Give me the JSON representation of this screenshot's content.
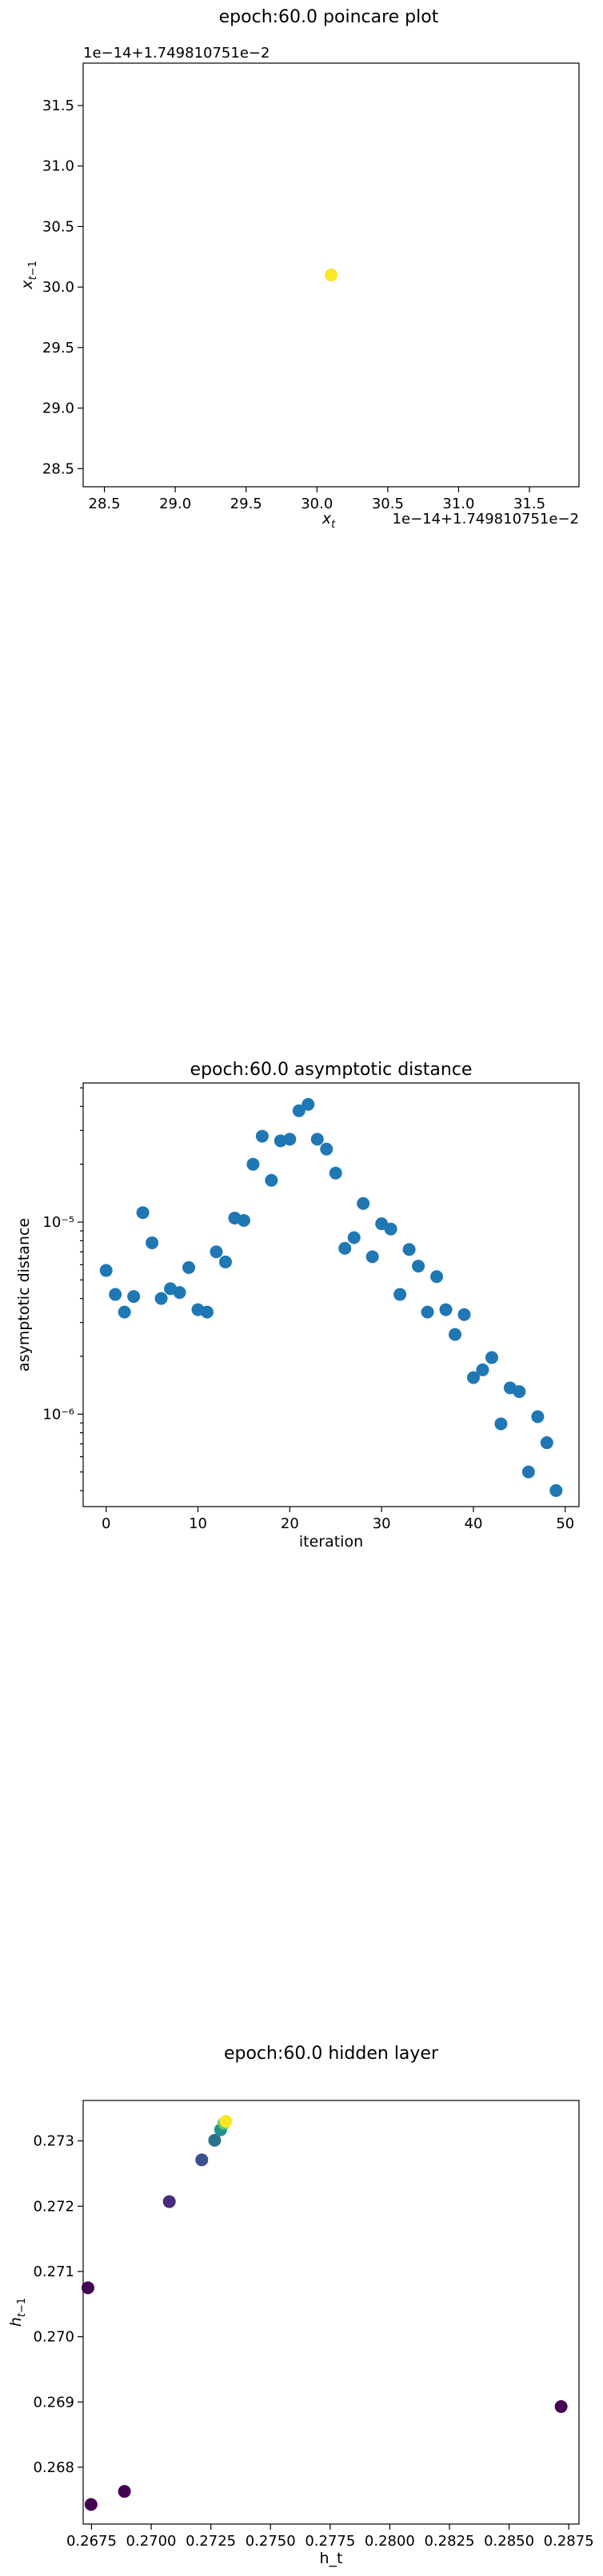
{
  "chart_data": [
    {
      "id": "poincare",
      "type": "scatter",
      "title": "epoch:60.0 poincare plot",
      "xlabel": "x_t",
      "ylabel": "x_{t-1}",
      "offset_text_x": "1e−14+1.749810751e−2",
      "offset_text_y": "1e−14+1.749810751e−2",
      "xlim": [
        28.35,
        31.85
      ],
      "ylim": [
        28.35,
        31.85
      ],
      "xticks": [
        28.5,
        29.0,
        29.5,
        30.0,
        30.5,
        31.0,
        31.5
      ],
      "yticks": [
        28.5,
        29.0,
        29.5,
        30.0,
        30.5,
        31.0,
        31.5
      ],
      "tick_labels_x": [
        "28.5",
        "29.0",
        "29.5",
        "30.0",
        "30.5",
        "31.0",
        "31.5"
      ],
      "tick_labels_y": [
        "28.5",
        "29.0",
        "29.5",
        "30.0",
        "30.5",
        "31.0",
        "31.5"
      ],
      "points": [
        {
          "x": 30.1,
          "y": 30.1,
          "color": "#fde725"
        }
      ]
    },
    {
      "id": "asymptotic",
      "type": "scatter",
      "title": "epoch:60.0 asymptotic distance",
      "xlabel": "iteration",
      "ylabel": "asymptotic distance",
      "yscale": "log",
      "xlim": [
        -2.5,
        51.5
      ],
      "ylim": [
        3.3e-07,
        5.3e-05
      ],
      "xticks": [
        0,
        10,
        20,
        30,
        40,
        50
      ],
      "tick_labels_x": [
        "0",
        "10",
        "20",
        "30",
        "40",
        "50"
      ],
      "major_yticks": [
        1e-06,
        1e-05
      ],
      "tick_labels_y": [
        "10⁻⁶",
        "10⁻⁵"
      ],
      "point_color": "#1f77b4",
      "x": [
        0,
        1,
        2,
        3,
        4,
        5,
        6,
        7,
        8,
        9,
        10,
        11,
        12,
        13,
        14,
        15,
        16,
        17,
        18,
        19,
        20,
        21,
        22,
        23,
        24,
        25,
        26,
        27,
        28,
        29,
        30,
        31,
        32,
        33,
        34,
        35,
        36,
        37,
        38,
        39,
        40,
        41,
        42,
        43,
        44,
        45,
        46,
        47,
        48,
        49
      ],
      "y": [
        5.6e-06,
        4.2e-06,
        3.4e-06,
        4.1e-06,
        1.12e-05,
        7.8e-06,
        4e-06,
        4.5e-06,
        4.3e-06,
        5.8e-06,
        3.5e-06,
        3.4e-06,
        7e-06,
        6.2e-06,
        1.05e-05,
        1.02e-05,
        2e-05,
        2.8e-05,
        1.65e-05,
        2.65e-05,
        2.7e-05,
        3.8e-05,
        4.1e-05,
        2.7e-05,
        2.4e-05,
        1.8e-05,
        7.3e-06,
        8.3e-06,
        1.25e-05,
        6.6e-06,
        9.8e-06,
        9.2e-06,
        4.2e-06,
        7.2e-06,
        5.9e-06,
        3.4e-06,
        5.2e-06,
        3.5e-06,
        2.6e-06,
        3.3e-06,
        1.55e-06,
        1.7e-06,
        1.97e-06,
        8.9e-07,
        1.37e-06,
        1.31e-06,
        5e-07,
        9.7e-07,
        7.1e-07,
        4e-07
      ]
    },
    {
      "id": "hidden",
      "type": "scatter",
      "title": "epoch:60.0 hidden layer",
      "xlabel": "h_t",
      "ylabel": "h_{t-1}",
      "xlim": [
        0.26715,
        0.28793
      ],
      "ylim": [
        0.26713,
        0.27362
      ],
      "xticks": [
        0.2675,
        0.27,
        0.2725,
        0.275,
        0.2775,
        0.28,
        0.2825,
        0.285,
        0.2875
      ],
      "tick_labels_x": [
        "0.2675",
        "0.2700",
        "0.2725",
        "0.2750",
        "0.2775",
        "0.2800",
        "0.2825",
        "0.2850",
        "0.2875"
      ],
      "yticks": [
        0.268,
        0.269,
        0.27,
        0.271,
        0.272,
        0.273
      ],
      "tick_labels_y": [
        "0.268",
        "0.269",
        "0.270",
        "0.271",
        "0.272",
        "0.273"
      ],
      "points": [
        {
          "x": 0.26735,
          "y": 0.27075,
          "color": "#440154"
        },
        {
          "x": 0.26748,
          "y": 0.26743,
          "color": "#440154"
        },
        {
          "x": 0.26888,
          "y": 0.26763,
          "color": "#440154"
        },
        {
          "x": 0.28718,
          "y": 0.26893,
          "color": "#440154"
        },
        {
          "x": 0.27076,
          "y": 0.27207,
          "color": "#472d7b"
        },
        {
          "x": 0.27212,
          "y": 0.27271,
          "color": "#3b528b"
        },
        {
          "x": 0.27266,
          "y": 0.27301,
          "color": "#2c728e"
        },
        {
          "x": 0.27291,
          "y": 0.27317,
          "color": "#21918c"
        },
        {
          "x": 0.27305,
          "y": 0.27327,
          "color": "#5ec962"
        },
        {
          "x": 0.27313,
          "y": 0.2733,
          "color": "#fde725"
        }
      ]
    }
  ]
}
